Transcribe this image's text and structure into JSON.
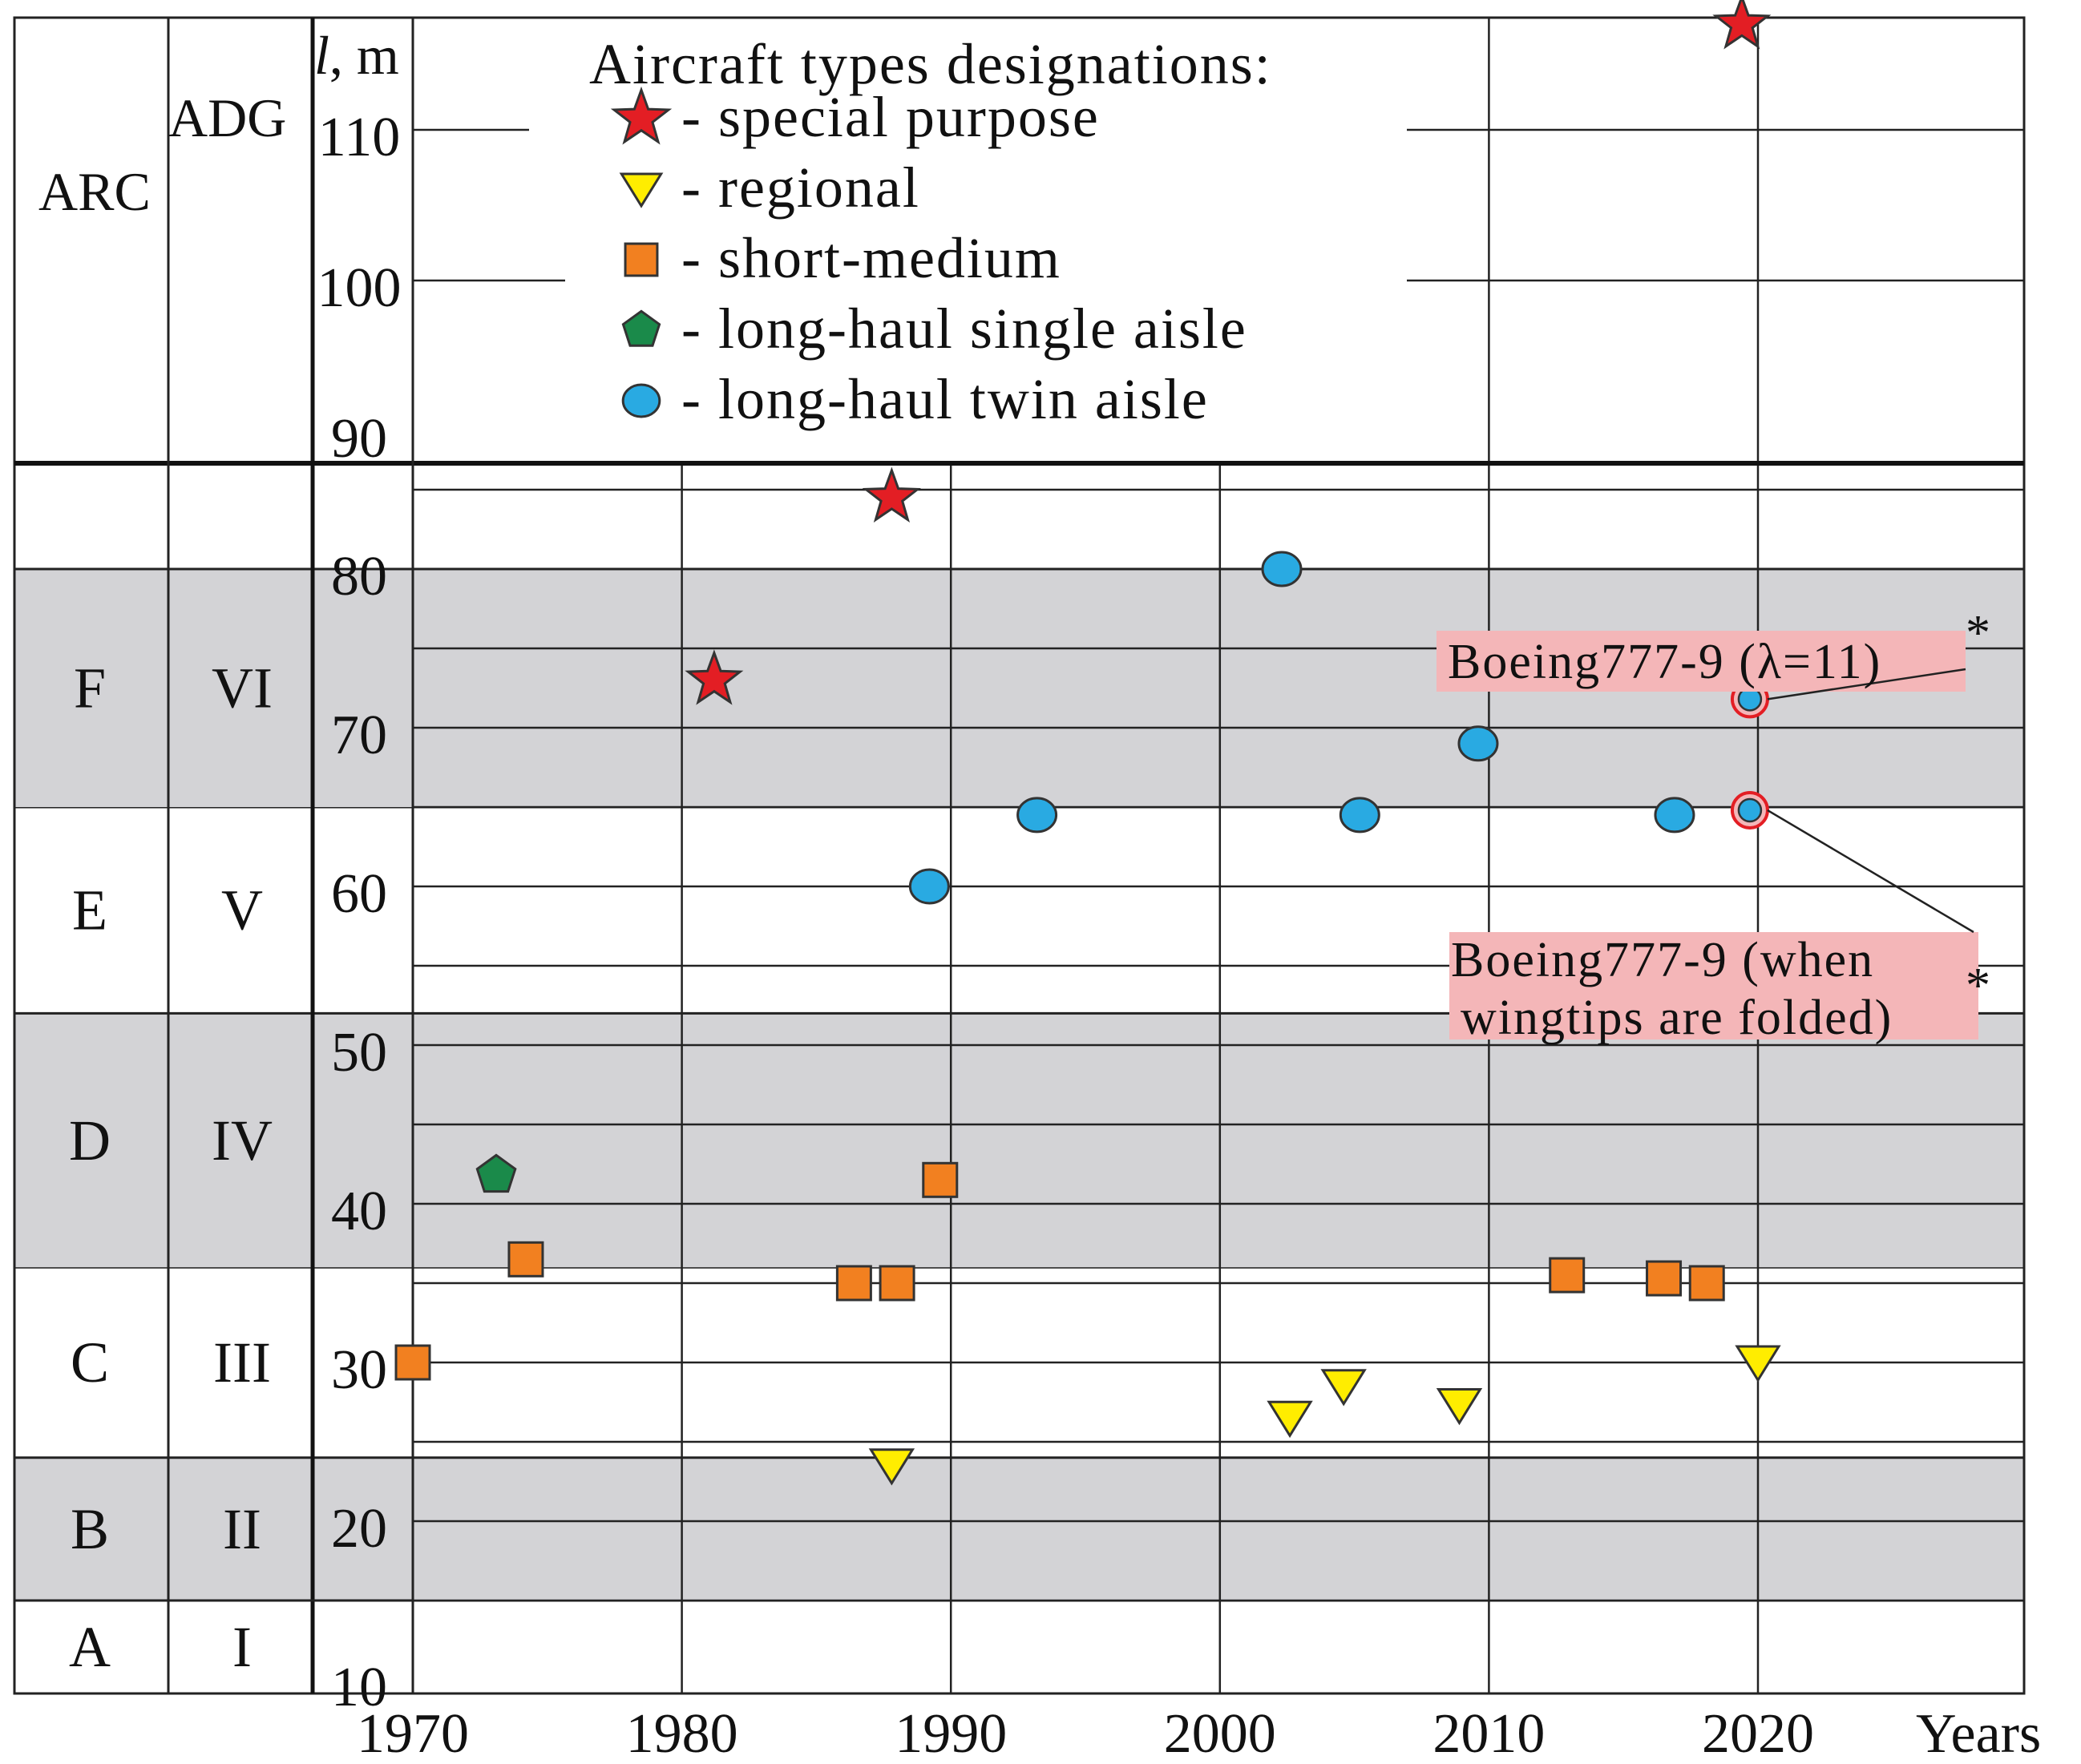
{
  "chart_data": {
    "type": "scatter",
    "title": "Aircraft types designations:",
    "xlabel": "Years",
    "ylabel": "l, m",
    "ylabel_italic": "l",
    "ylabel_unit": ", m",
    "xlim": [
      1970,
      2030
    ],
    "x_ticks": [
      1970,
      1980,
      1990,
      2000,
      2010,
      2020
    ],
    "y_ticks_lower": [
      10,
      20,
      30,
      40,
      50,
      60,
      70,
      80
    ],
    "y_ticks_upper": [
      90,
      100,
      110
    ],
    "zone_headers": {
      "arc": "ARC",
      "adg": "ADG"
    },
    "zones": [
      {
        "arc": "A",
        "adg": "I",
        "range": [
          0,
          15
        ],
        "shaded": false
      },
      {
        "arc": "B",
        "adg": "II",
        "range": [
          15,
          24
        ],
        "shaded": true
      },
      {
        "arc": "C",
        "adg": "III",
        "range": [
          24,
          36
        ],
        "shaded": false
      },
      {
        "arc": "D",
        "adg": "IV",
        "range": [
          36,
          52
        ],
        "shaded": true
      },
      {
        "arc": "E",
        "adg": "V",
        "range": [
          52,
          65
        ],
        "shaded": false
      },
      {
        "arc": "F",
        "adg": "VI",
        "range": [
          65,
          80
        ],
        "shaded": true
      }
    ],
    "legend": [
      {
        "marker": "star",
        "label": "- special purpose",
        "color": "#e31e24"
      },
      {
        "marker": "triangle-down",
        "label": "- regional",
        "color": "#ffed00"
      },
      {
        "marker": "square",
        "label": "- short-medium",
        "color": "#f28020"
      },
      {
        "marker": "pentagon",
        "label": "- long-haul single aisle",
        "color": "#1a8a4a"
      },
      {
        "marker": "circle",
        "label": "- long-haul twin aisle",
        "color": "#29aae2"
      }
    ],
    "series": [
      {
        "name": "special purpose",
        "marker": "star",
        "points": [
          [
            1981.2,
            73
          ],
          [
            1987.8,
            84.5
          ],
          [
            2019.4,
            117
          ]
        ]
      },
      {
        "name": "regional",
        "marker": "triangle-down",
        "points": [
          [
            1987.8,
            23.5
          ],
          [
            2002.6,
            26.5
          ],
          [
            2004.6,
            28.5
          ],
          [
            2008.9,
            27.3
          ],
          [
            2020.0,
            30
          ]
        ]
      },
      {
        "name": "short-medium",
        "marker": "square",
        "points": [
          [
            1970,
            30
          ],
          [
            1974.2,
            36.5
          ],
          [
            1986.4,
            35
          ],
          [
            1988.0,
            35
          ],
          [
            1989.6,
            41.5
          ],
          [
            2012.9,
            35.5
          ],
          [
            2016.5,
            35.3
          ],
          [
            2018.1,
            35
          ]
        ]
      },
      {
        "name": "long-haul single aisle",
        "marker": "pentagon",
        "points": [
          [
            1973.1,
            41.8
          ]
        ]
      },
      {
        "name": "long-haul twin aisle",
        "marker": "circle",
        "points": [
          [
            1989.2,
            60
          ],
          [
            1993.2,
            64.5
          ],
          [
            2002.3,
            80
          ],
          [
            2005.2,
            64.5
          ],
          [
            2009.6,
            69
          ],
          [
            2016.9,
            64.5
          ]
        ]
      },
      {
        "name": "Boeing 777-9",
        "marker": "circle-highlight",
        "points": [
          [
            2019.7,
            71.8
          ],
          [
            2019.7,
            64.8
          ]
        ]
      }
    ],
    "annotations": [
      {
        "text": "Boeing777-9 (λ=11)",
        "superscript": "*",
        "x": 2019.7,
        "y": 71.8
      },
      {
        "text_lines": [
          "Boeing777-9 (when",
          "wingtips are folded)"
        ],
        "superscript": "*",
        "x": 2019.7,
        "y": 64.8
      }
    ]
  }
}
